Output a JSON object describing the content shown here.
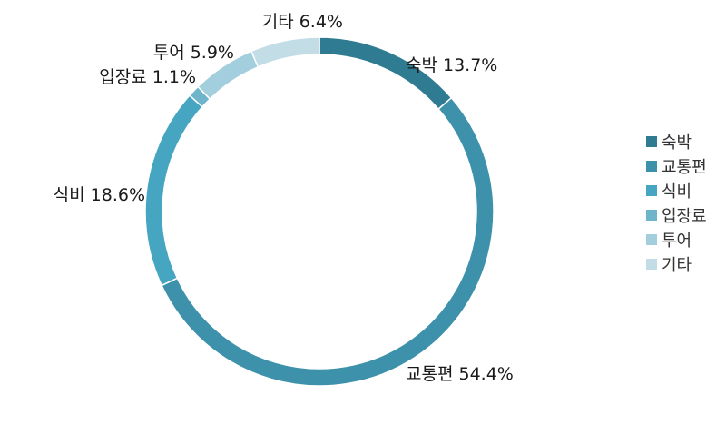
{
  "chart_data": {
    "type": "pie",
    "style": "donut",
    "series": [
      {
        "name": "숙박",
        "value": 13.7,
        "label": "숙박 13.7%",
        "color": "#2f7c92"
      },
      {
        "name": "교통편",
        "value": 54.4,
        "label": "교통편 54.4%",
        "color": "#3d91aa"
      },
      {
        "name": "식비",
        "value": 18.6,
        "label": "식비 18.6%",
        "color": "#46a5c0"
      },
      {
        "name": "입장료",
        "value": 1.1,
        "label": "입장료 1.1%",
        "color": "#6eb5cc"
      },
      {
        "name": "투어",
        "value": 5.9,
        "label": "투어 5.9%",
        "color": "#a3cedd"
      },
      {
        "name": "기타",
        "value": 6.4,
        "label": "기타 6.4%",
        "color": "#c2dde6"
      }
    ],
    "legend": {
      "position": "right"
    }
  }
}
